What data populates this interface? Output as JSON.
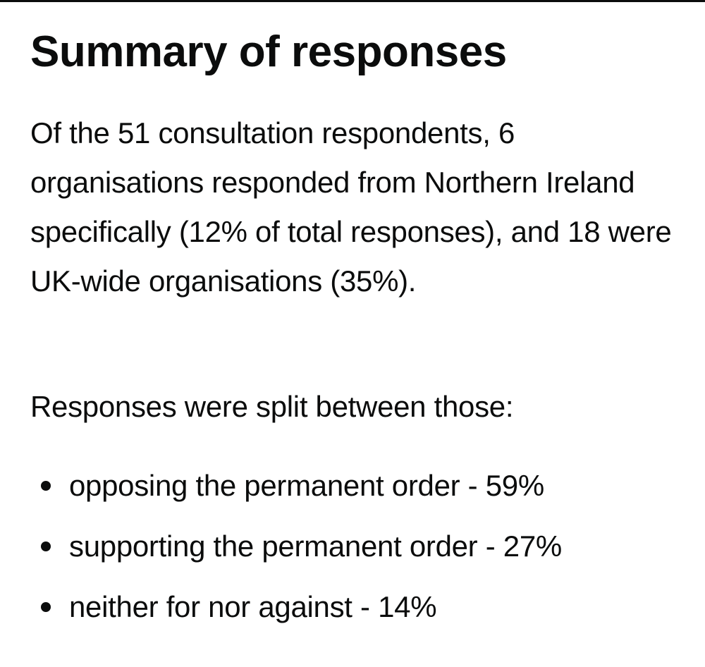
{
  "section": {
    "title": "Summary of responses",
    "paragraphs": [
      "Of the 51 consultation respondents, 6 organisations responded from Northern Ireland specifically (12% of total responses), and 18 were UK-wide organisations (35%).",
      "Responses were split between those:"
    ],
    "list_items": [
      "opposing the permanent order - 59%",
      "supporting the permanent order - 27%",
      "neither for nor against - 14%"
    ]
  }
}
